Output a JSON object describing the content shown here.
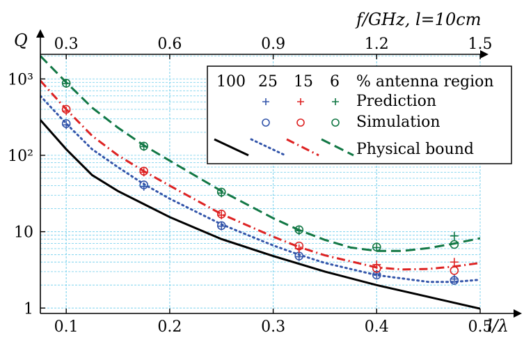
{
  "chart_data": {
    "type": "line",
    "xlabel": "l/λ",
    "ylabel": "Q",
    "top_xlabel": "f/GHz, l=10cm",
    "xlim": [
      0.075,
      0.5
    ],
    "ylim": [
      0.85,
      2100
    ],
    "yscale": "log",
    "grid": true,
    "x_ticks": [
      "0.1",
      "0.2",
      "0.3",
      "0.4",
      "0.5"
    ],
    "x_tick_values": [
      0.1,
      0.2,
      0.3,
      0.4,
      0.5
    ],
    "y_ticks": [
      "1",
      "10",
      "10²",
      "10³"
    ],
    "y_tick_values": [
      1,
      10,
      100,
      1000
    ],
    "top_ticks": [
      "0.3",
      "0.6",
      "0.9",
      "1.2",
      "1.5"
    ],
    "top_tick_values": [
      0.3,
      0.6,
      0.9,
      1.2,
      1.5
    ],
    "legend_header": [
      "100",
      "25",
      "15",
      "6",
      "% antenna region"
    ],
    "legend_rows": [
      "Prediction",
      "Simulation",
      "Physical bound"
    ],
    "legend_position": "top-right",
    "series": [
      {
        "name": "100",
        "color": "#000000",
        "style": "solid",
        "x": [
          0.075,
          0.1,
          0.125,
          0.15,
          0.175,
          0.2,
          0.25,
          0.3,
          0.35,
          0.4,
          0.45,
          0.5
        ],
        "y": [
          290,
          120,
          55,
          34,
          23,
          15.5,
          8.0,
          4.8,
          3.0,
          2.0,
          1.4,
          0.98
        ]
      },
      {
        "name": "25",
        "color": "#3355aa",
        "style": "dotted",
        "x": [
          0.075,
          0.1,
          0.125,
          0.15,
          0.175,
          0.2,
          0.25,
          0.3,
          0.325,
          0.35,
          0.4,
          0.45,
          0.475,
          0.5
        ],
        "y": [
          600,
          260,
          120,
          70,
          42,
          27,
          12.5,
          6.6,
          5.0,
          3.9,
          2.7,
          2.2,
          2.2,
          2.35
        ],
        "prediction": {
          "x": [
            0.1,
            0.175,
            0.25,
            0.325,
            0.4,
            0.475
          ],
          "y": [
            250,
            39,
            11.8,
            4.7,
            2.8,
            2.4
          ]
        },
        "simulation": {
          "x": [
            0.1,
            0.175,
            0.25,
            0.325,
            0.4,
            0.475
          ],
          "y": [
            260,
            41,
            12,
            4.8,
            2.7,
            2.3
          ]
        }
      },
      {
        "name": "15",
        "color": "#dd2222",
        "style": "dashdot",
        "x": [
          0.075,
          0.1,
          0.125,
          0.15,
          0.175,
          0.2,
          0.25,
          0.3,
          0.325,
          0.35,
          0.4,
          0.425,
          0.45,
          0.475,
          0.5
        ],
        "y": [
          950,
          400,
          180,
          100,
          62,
          40,
          17,
          8.6,
          6.3,
          4.9,
          3.4,
          3.2,
          3.25,
          3.5,
          3.9
        ],
        "prediction": {
          "x": [
            0.1,
            0.175,
            0.25,
            0.325,
            0.4,
            0.475
          ],
          "y": [
            380,
            60,
            16.5,
            6.0,
            3.7,
            4.0
          ]
        },
        "simulation": {
          "x": [
            0.1,
            0.175,
            0.25,
            0.325,
            0.4,
            0.475
          ],
          "y": [
            400,
            62,
            17,
            6.5,
            3.3,
            3.1
          ]
        }
      },
      {
        "name": "6",
        "color": "#117744",
        "style": "dashed",
        "x": [
          0.075,
          0.1,
          0.125,
          0.15,
          0.175,
          0.2,
          0.25,
          0.3,
          0.325,
          0.35,
          0.375,
          0.4,
          0.425,
          0.45,
          0.475,
          0.5
        ],
        "y": [
          2000,
          900,
          420,
          230,
          135,
          85,
          34,
          15,
          10.5,
          7.8,
          6.2,
          5.6,
          5.6,
          6.1,
          7.0,
          8.2
        ],
        "prediction": {
          "x": [
            0.1,
            0.175,
            0.25,
            0.325,
            0.4,
            0.475
          ],
          "y": [
            870,
            130,
            32,
            10.3,
            6.2,
            8.8
          ]
        },
        "simulation": {
          "x": [
            0.1,
            0.175,
            0.25,
            0.325,
            0.4,
            0.475
          ],
          "y": [
            880,
            132,
            33,
            10.6,
            6.3,
            6.8
          ]
        }
      }
    ]
  }
}
